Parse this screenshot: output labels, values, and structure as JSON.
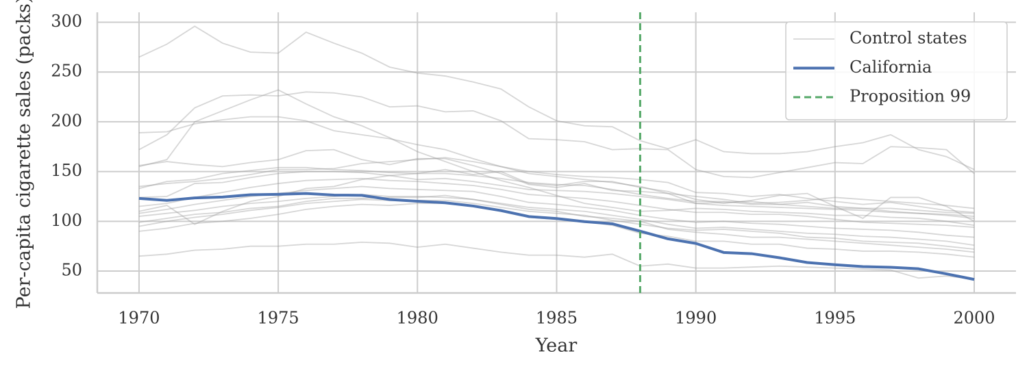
{
  "chart_data": {
    "type": "line",
    "xlabel": "Year",
    "ylabel": "Per-capita cigarette sales (packs)",
    "x": [
      1970,
      1971,
      1972,
      1973,
      1974,
      1975,
      1976,
      1977,
      1978,
      1979,
      1980,
      1981,
      1982,
      1983,
      1984,
      1985,
      1986,
      1987,
      1988,
      1989,
      1990,
      1991,
      1992,
      1993,
      1994,
      1995,
      1996,
      1997,
      1998,
      1999,
      2000
    ],
    "xlim": [
      1968.5,
      2001.5
    ],
    "xticks": [
      1970,
      1975,
      1980,
      1985,
      1990,
      1995,
      2000
    ],
    "ylim": [
      28,
      310
    ],
    "yticks": [
      50,
      100,
      150,
      200,
      250,
      300
    ],
    "grid": true,
    "legend": "upper right",
    "control_states": {
      "name": "Control states",
      "color": "#999999",
      "series": [
        [
          265,
          278,
          296,
          279,
          270,
          269,
          290,
          279,
          269,
          255,
          249,
          246,
          240,
          233,
          215,
          201,
          196,
          195,
          181,
          173,
          182,
          170,
          168,
          168,
          170,
          175,
          179,
          187,
          172,
          165,
          152
        ],
        [
          172,
          187,
          214,
          226,
          227,
          226,
          230,
          229,
          225,
          215,
          216,
          210,
          211,
          201,
          183,
          182,
          180,
          172,
          173,
          172,
          152,
          145,
          144,
          149,
          154,
          159,
          158,
          175,
          174,
          172,
          148
        ],
        [
          189,
          190,
          198,
          202,
          205,
          205,
          201,
          191,
          187,
          183,
          177,
          172,
          163,
          155,
          150,
          147,
          145,
          144,
          142,
          139,
          129,
          128,
          125,
          127,
          123,
          120,
          117,
          119,
          115,
          111,
          109
        ],
        [
          155,
          162,
          200,
          211,
          222,
          232,
          218,
          205,
          196,
          184,
          170,
          160,
          150,
          141,
          134,
          126,
          118,
          114,
          110,
          111,
          113,
          112,
          110,
          109,
          108,
          106,
          106,
          104,
          103,
          100,
          96
        ],
        [
          156,
          160,
          157,
          155,
          159,
          162,
          171,
          172,
          162,
          157,
          163,
          163,
          156,
          148,
          137,
          134,
          138,
          131,
          130,
          128,
          118,
          116,
          115,
          114,
          113,
          112,
          111,
          109,
          108,
          107,
          105
        ],
        [
          133,
          140,
          142,
          148,
          151,
          154,
          154,
          152,
          151,
          149,
          148,
          148,
          146,
          143,
          139,
          137,
          136,
          132,
          127,
          123,
          120,
          120,
          117,
          117,
          115,
          113,
          113,
          110,
          108,
          106,
          103
        ],
        [
          124,
          125,
          138,
          139,
          144,
          148,
          150,
          150,
          149,
          146,
          142,
          143,
          140,
          136,
          132,
          131,
          130,
          128,
          125,
          122,
          118,
          119,
          120,
          117,
          119,
          115,
          113,
          113,
          111,
          109,
          108
        ],
        [
          115,
          118,
          124,
          129,
          134,
          138,
          141,
          142,
          143,
          141,
          140,
          138,
          136,
          132,
          127,
          125,
          123,
          120,
          116,
          112,
          109,
          109,
          107,
          107,
          105,
          102,
          99,
          98,
          97,
          96,
          94
        ],
        [
          108,
          112,
          117,
          121,
          125,
          128,
          131,
          133,
          135,
          133,
          132,
          131,
          130,
          125,
          119,
          117,
          114,
          111,
          106,
          102,
          99,
          100,
          98,
          97,
          95,
          93,
          92,
          91,
          89,
          86,
          84
        ],
        [
          105,
          108,
          111,
          115,
          118,
          120,
          123,
          125,
          127,
          125,
          125,
          124,
          122,
          118,
          114,
          112,
          110,
          106,
          102,
          97,
          93,
          94,
          92,
          90,
          88,
          87,
          85,
          84,
          82,
          80,
          76
        ],
        [
          95,
          100,
          104,
          107,
          111,
          114,
          118,
          120,
          122,
          121,
          121,
          121,
          118,
          114,
          110,
          108,
          106,
          101,
          97,
          93,
          91,
          92,
          90,
          88,
          84,
          83,
          80,
          79,
          78,
          75,
          72
        ],
        [
          99,
          103,
          107,
          109,
          113,
          115,
          120,
          123,
          123,
          124,
          124,
          126,
          122,
          117,
          112,
          110,
          105,
          103,
          100,
          92,
          89,
          87,
          84,
          84,
          82,
          80,
          78,
          76,
          74,
          72,
          69
        ],
        [
          90,
          93,
          98,
          100,
          103,
          107,
          112,
          115,
          117,
          116,
          118,
          118,
          116,
          111,
          104,
          102,
          100,
          96,
          88,
          85,
          80,
          80,
          77,
          77,
          73,
          72,
          70,
          70,
          69,
          67,
          64
        ],
        [
          65,
          67,
          71,
          72,
          75,
          75,
          77,
          77,
          79,
          78,
          74,
          77,
          73,
          69,
          66,
          66,
          64,
          67,
          55,
          57,
          53,
          53,
          54,
          55,
          54,
          53,
          52,
          51,
          43,
          45,
          42
        ],
        [
          135,
          138,
          140,
          143,
          147,
          152,
          152,
          153,
          158,
          160,
          162,
          164,
          160,
          155,
          148,
          145,
          142,
          139,
          135,
          128,
          125,
          122,
          118,
          119,
          121,
          124,
          122,
          120,
          118,
          116,
          113
        ],
        [
          110,
          116,
          97,
          110,
          120,
          125,
          133,
          135,
          142,
          146,
          148,
          152,
          147,
          150,
          138,
          136,
          140,
          140,
          134,
          130,
          122,
          118,
          121,
          126,
          128,
          115,
          103,
          124,
          124,
          115,
          100
        ]
      ]
    },
    "california": {
      "name": "California",
      "color": "#4c72b0",
      "values": [
        123,
        121,
        123.5,
        124.4,
        126.7,
        127.1,
        128,
        126.4,
        126.1,
        121.9,
        120.2,
        118.6,
        115.4,
        110.8,
        104.8,
        102.8,
        99.7,
        97.5,
        90.1,
        82.4,
        77.8,
        68.7,
        67.5,
        63.4,
        58.6,
        56.4,
        54.5,
        53.8,
        52.3,
        47.2,
        41.6
      ]
    },
    "intervention": {
      "name": "Proposition 99",
      "x": 1988,
      "color": "#55a868"
    }
  }
}
